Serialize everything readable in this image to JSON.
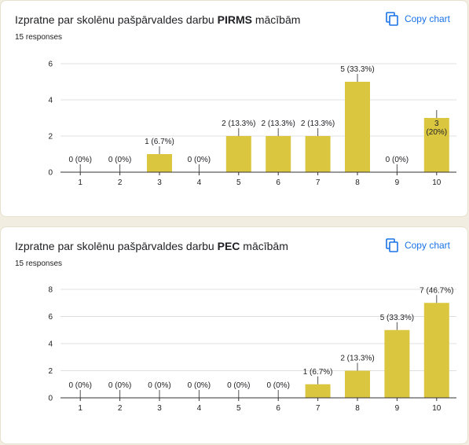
{
  "colors": {
    "bar": "#dbc63f",
    "grid": "#e0e0e0",
    "axis": "#333333",
    "accent": "#1a73e8"
  },
  "cards": [
    {
      "title_prefix": "Izpratne par skolēnu pašpārvaldes darbu ",
      "title_bold": "PIRMS",
      "title_suffix": " mācībām",
      "responses": "15 responses",
      "copy_label": "Copy chart"
    },
    {
      "title_prefix": "Izpratne par skolēnu pašpārvaldes darbu ",
      "title_bold": "PEC",
      "title_suffix": " mācībām",
      "responses": "15 responses",
      "copy_label": "Copy chart"
    }
  ],
  "chart_data": [
    {
      "type": "bar",
      "title": "Izpratne par skolēnu pašpārvaldes darbu PIRMS mācībām",
      "categories": [
        "1",
        "2",
        "3",
        "4",
        "5",
        "6",
        "7",
        "8",
        "9",
        "10"
      ],
      "values": [
        0,
        0,
        1,
        0,
        2,
        2,
        2,
        5,
        0,
        3
      ],
      "data_labels": [
        "0 (0%)",
        "0 (0%)",
        "1 (6.7%)",
        "0 (0%)",
        "2 (13.3%)",
        "2 (13.3%)",
        "2 (13.3%)",
        "5 (33.3%)",
        "0 (0%)",
        "3 (20%)"
      ],
      "yticks": [
        0,
        2,
        4,
        6
      ],
      "ylim": [
        0,
        6
      ],
      "grid": true
    },
    {
      "type": "bar",
      "title": "Izpratne par skolēnu pašpārvaldes darbu PEC mācībām",
      "categories": [
        "1",
        "2",
        "3",
        "4",
        "5",
        "6",
        "7",
        "8",
        "9",
        "10"
      ],
      "values": [
        0,
        0,
        0,
        0,
        0,
        0,
        1,
        2,
        5,
        7
      ],
      "data_labels": [
        "0 (0%)",
        "0 (0%)",
        "0 (0%)",
        "0 (0%)",
        "0 (0%)",
        "0 (0%)",
        "1 (6.7%)",
        "2 (13.3%)",
        "5 (33.3%)",
        "7 (46.7%)"
      ],
      "yticks": [
        0,
        2,
        4,
        6,
        8
      ],
      "ylim": [
        0,
        8
      ],
      "grid": true
    }
  ]
}
